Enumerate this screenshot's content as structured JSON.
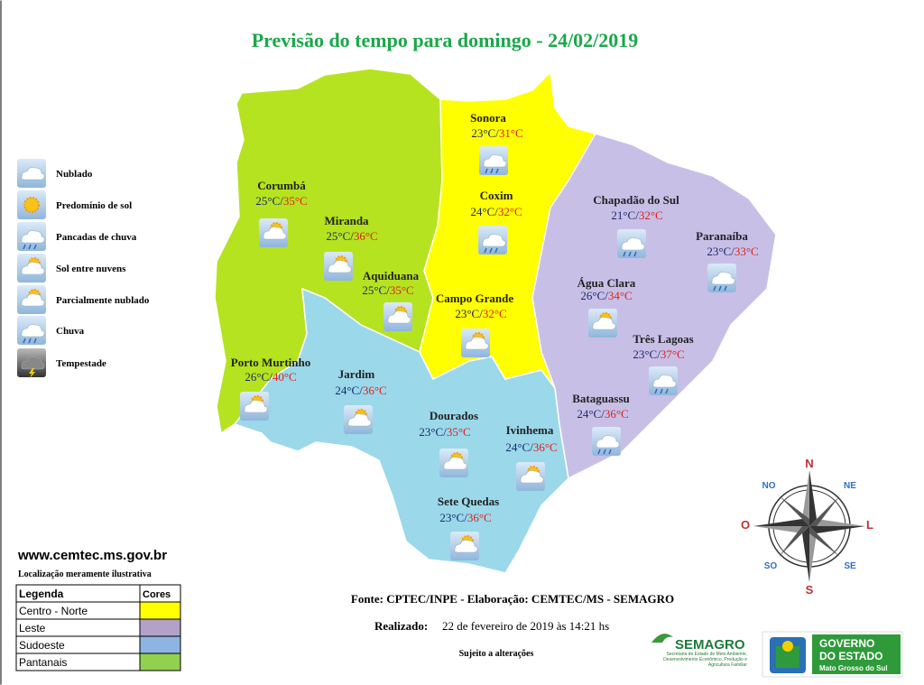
{
  "title": "Previsão do tempo para domingo - 24/02/2019",
  "separator": "/",
  "legend_icons": [
    "Nublado",
    "Predomínio de sol",
    "Pancadas de chuva",
    "Sol entre nuvens",
    "Parcialmente nublado",
    "Chuva",
    "Tempestade"
  ],
  "cities": [
    {
      "name": "Sonora",
      "min": "23°C",
      "max": "31°C"
    },
    {
      "name": "Coxim",
      "min": "24°C",
      "max": "32°C"
    },
    {
      "name": "Chapadão do Sul",
      "min": "21°C",
      "max": "32°C"
    },
    {
      "name": "Paranaíba",
      "min": "23°C",
      "max": "33°C"
    },
    {
      "name": "Corumbá",
      "min": "25°C",
      "max": "35°C"
    },
    {
      "name": "Miranda",
      "min": "25°C",
      "max": "36°C"
    },
    {
      "name": "Aquiduana",
      "min": "25°C",
      "max": "35°C"
    },
    {
      "name": "Campo Grande",
      "min": "23°C",
      "max": "32°C"
    },
    {
      "name": "Água Clara",
      "min": "26°C",
      "max": "34°C"
    },
    {
      "name": "Três Lagoas",
      "min": "23°C",
      "max": "37°C"
    },
    {
      "name": "Porto Murtinho",
      "min": "26°C",
      "max": "40°C"
    },
    {
      "name": "Jardim",
      "min": "24°C",
      "max": "36°C"
    },
    {
      "name": "Dourados",
      "min": "23°C",
      "max": "35°C"
    },
    {
      "name": "Ivinhema",
      "min": "24°C",
      "max": "36°C"
    },
    {
      "name": "Bataguassu",
      "min": "24°C",
      "max": "36°C"
    },
    {
      "name": "Sete Quedas",
      "min": "23°C",
      "max": "36°C"
    }
  ],
  "website": "www.cemtec.ms.gov.br",
  "note": "Localização meramente ilustrativa",
  "legend_table": {
    "header": [
      "Legenda",
      "Cores"
    ],
    "rows": [
      {
        "label": "Centro - Norte",
        "color": "#ffff00"
      },
      {
        "label": "Leste",
        "color": "#b3a2c7"
      },
      {
        "label": "Sudoeste",
        "color": "#8db4e2"
      },
      {
        "label": "Pantanais",
        "color": "#92d050"
      }
    ]
  },
  "compass": [
    "N",
    "NE",
    "L",
    "SE",
    "S",
    "SO",
    "O",
    "NO"
  ],
  "source": "Fonte: CPTEC/INPE -  Elaboração: CEMTEC/MS - SEMAGRO",
  "made_label": "Realizado:",
  "made_date": "22 de fevereiro de 2019 às 14:21 hs",
  "disclaimer": "Sujeito a alterações",
  "semagro": {
    "name": "SEMAGRO",
    "text": "Secretaria de Estado de Meio Ambiente, Desenvolvimento Econômico, Produção e Agricultura Familiar"
  },
  "governo": [
    "GOVERNO",
    "DO ESTADO",
    "Mato Grosso do Sul"
  ]
}
